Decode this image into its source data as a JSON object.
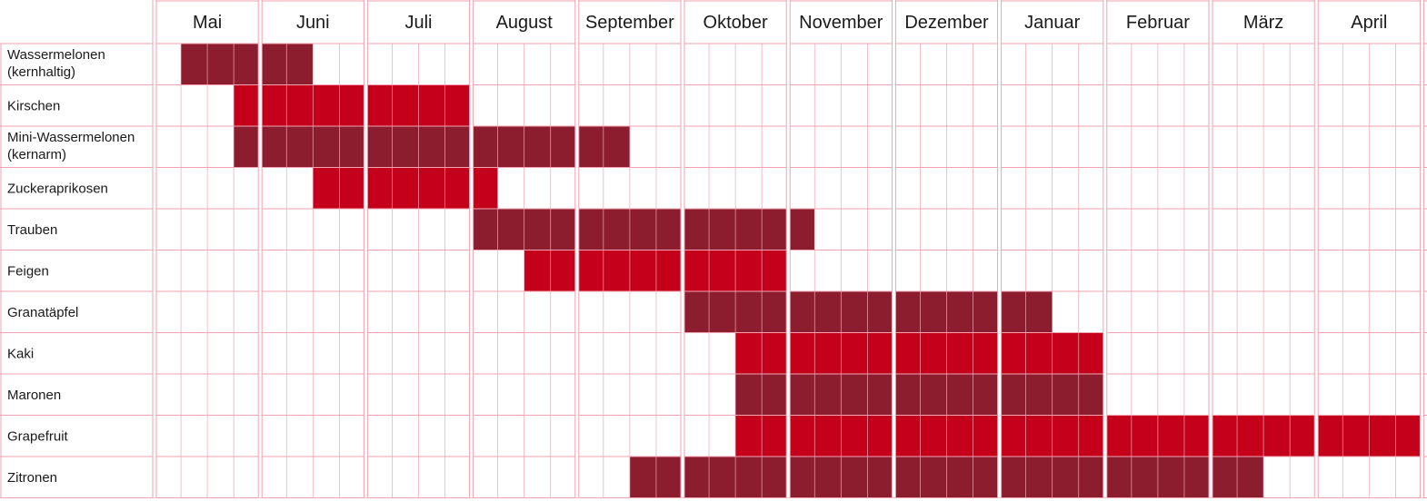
{
  "chart_data": {
    "type": "gantt",
    "months": [
      "Mai",
      "Juni",
      "Juli",
      "August",
      "September",
      "Oktober",
      "November",
      "Dezember",
      "Januar",
      "Februar",
      "März",
      "April"
    ],
    "weeks_per_month": 4,
    "colors": {
      "dark": "#8b1d2e",
      "bright": "#c4001a",
      "grid": "#f1a3b1"
    },
    "rows": [
      {
        "label": [
          "Wassermelonen",
          "(kernhaltig)"
        ],
        "color": "dark",
        "start_week": 1,
        "end_week": 6
      },
      {
        "label": [
          "Kirschen"
        ],
        "color": "bright",
        "start_week": 3,
        "end_week": 12
      },
      {
        "label": [
          "Mini-Wassermelonen",
          "(kernarm)"
        ],
        "color": "dark",
        "start_week": 3,
        "end_week": 18
      },
      {
        "label": [
          "Zuckeraprikosen"
        ],
        "color": "bright",
        "start_week": 6,
        "end_week": 13
      },
      {
        "label": [
          "Trauben"
        ],
        "color": "dark",
        "start_week": 12,
        "end_week": 25
      },
      {
        "label": [
          "Feigen"
        ],
        "color": "bright",
        "start_week": 14,
        "end_week": 24
      },
      {
        "label": [
          "Granatäpfel"
        ],
        "color": "dark",
        "start_week": 20,
        "end_week": 34
      },
      {
        "label": [
          "Kaki"
        ],
        "color": "bright",
        "start_week": 22,
        "end_week": 36
      },
      {
        "label": [
          "Maronen"
        ],
        "color": "dark",
        "start_week": 22,
        "end_week": 36
      },
      {
        "label": [
          "Grapefruit"
        ],
        "color": "bright",
        "start_week": 22,
        "end_week": 48
      },
      {
        "label": [
          "Zitronen"
        ],
        "color": "dark",
        "start_week": 18,
        "end_week": 42
      }
    ]
  }
}
